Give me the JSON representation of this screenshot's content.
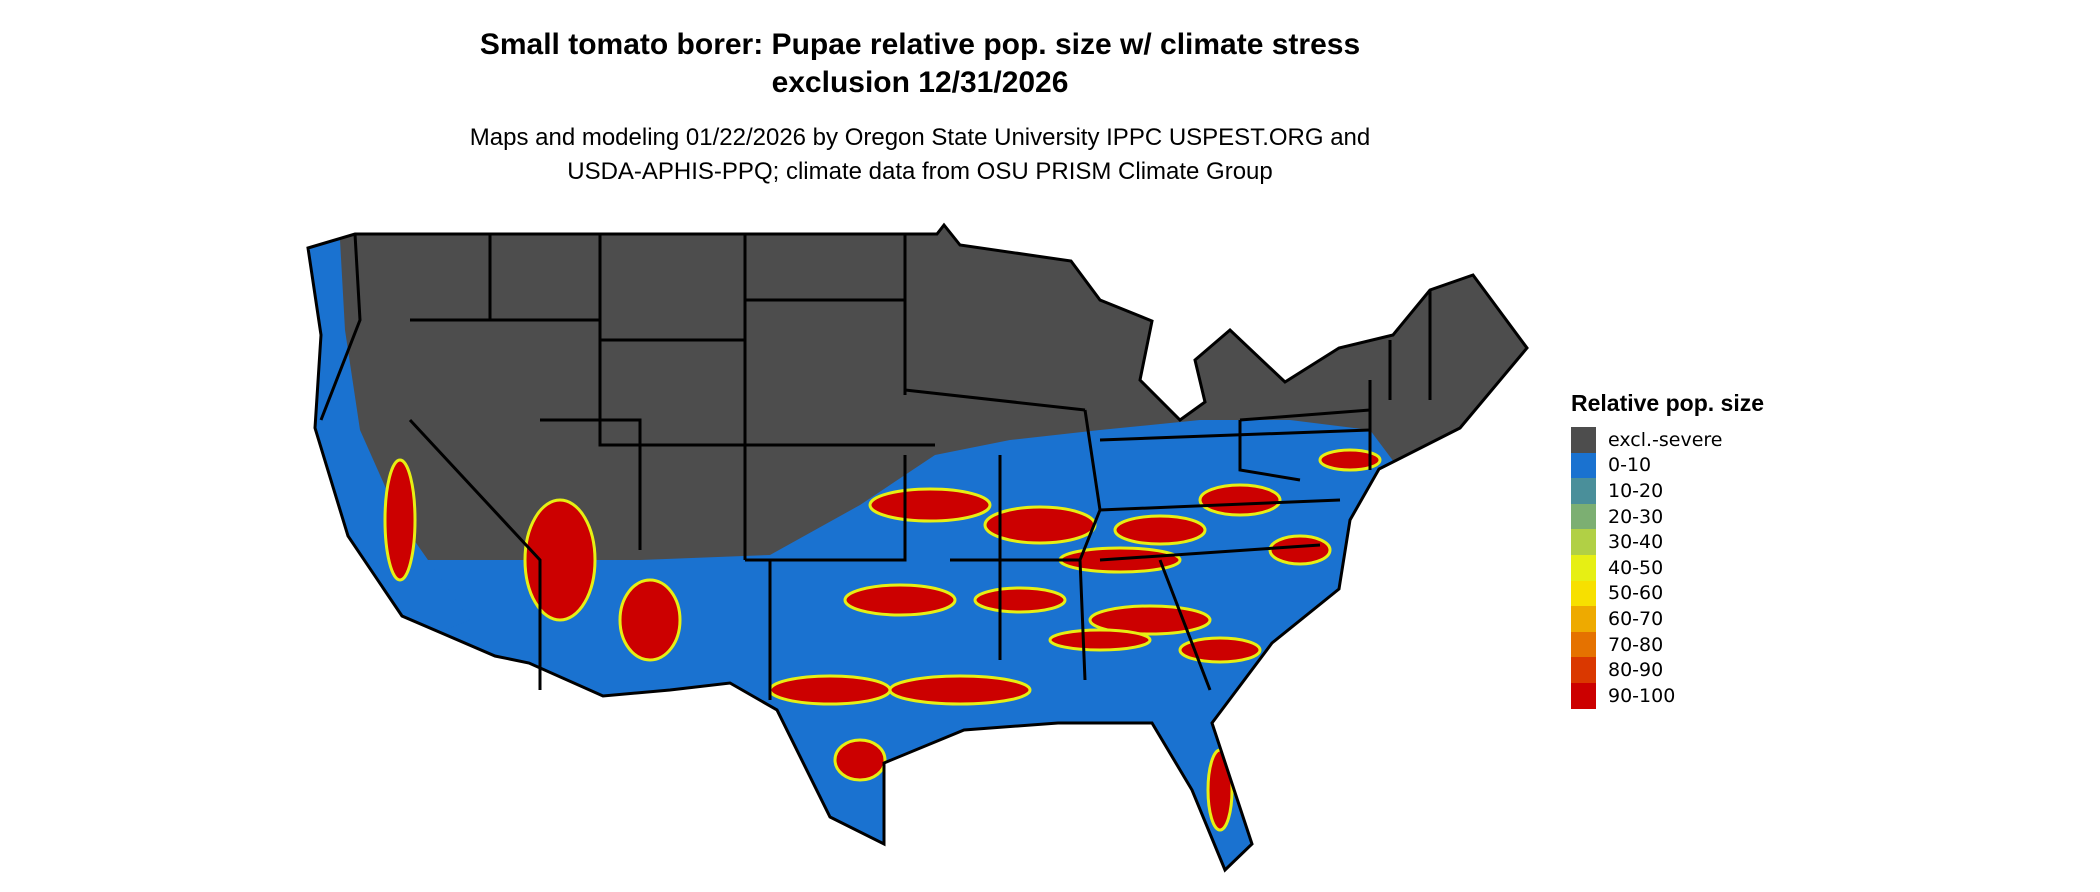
{
  "title": {
    "line1": "Small tomato borer: Pupae relative pop. size w/ climate stress",
    "line2": "exclusion 12/31/2026"
  },
  "subtitle": {
    "line1": "Maps and modeling 01/22/2026 by Oregon State University IPPC USPEST.ORG and",
    "line2": "USDA-APHIS-PPQ; climate data from OSU PRISM Climate Group"
  },
  "legend": {
    "title": "Relative pop. size",
    "items": [
      {
        "label": "excl.-severe",
        "color": "#4d4d4d"
      },
      {
        "label": "0-10",
        "color": "#1a72d0"
      },
      {
        "label": "10-20",
        "color": "#4a8f9a"
      },
      {
        "label": "20-30",
        "color": "#7caf72"
      },
      {
        "label": "30-40",
        "color": "#b1d045"
      },
      {
        "label": "40-50",
        "color": "#e6ef14"
      },
      {
        "label": "50-60",
        "color": "#f7e000"
      },
      {
        "label": "60-70",
        "color": "#eeaa00"
      },
      {
        "label": "70-80",
        "color": "#e57200"
      },
      {
        "label": "80-90",
        "color": "#da3800"
      },
      {
        "label": "90-100",
        "color": "#cc0000"
      }
    ]
  }
}
